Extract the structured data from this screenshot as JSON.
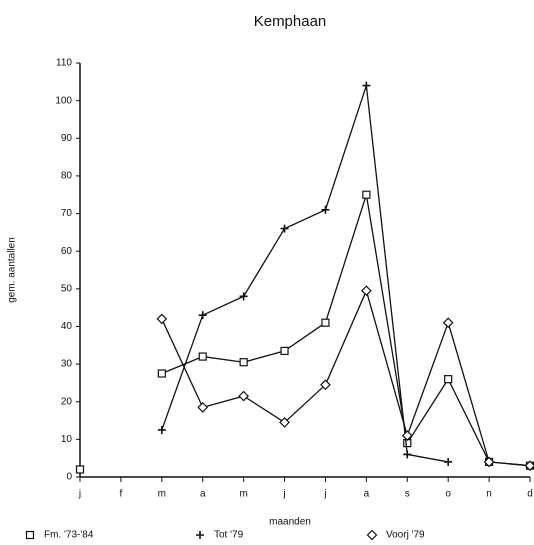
{
  "chart_data": {
    "type": "line",
    "title": "Kemphaan",
    "xlabel": "maanden",
    "ylabel": "gem. aantallen",
    "categories": [
      "j",
      "f",
      "m",
      "a",
      "m",
      "j",
      "j",
      "a",
      "s",
      "o",
      "n",
      "d"
    ],
    "ylim": [
      0,
      110
    ],
    "yticks": [
      0,
      10,
      20,
      30,
      40,
      50,
      60,
      70,
      80,
      90,
      100,
      110
    ],
    "series": [
      {
        "name": "Fm. '73-'84",
        "color": "#111111",
        "marker": "square",
        "values": [
          2,
          null,
          27.5,
          32,
          30.5,
          33.5,
          41,
          75,
          9,
          26,
          4,
          3
        ]
      },
      {
        "name": "Tot '79",
        "color": "#111111",
        "marker": "plus",
        "values": [
          null,
          null,
          12.5,
          43,
          48,
          66,
          71,
          104,
          6,
          4,
          null,
          null
        ]
      },
      {
        "name": "Voorj '79",
        "color": "#111111",
        "marker": "diamond",
        "values": [
          null,
          null,
          42,
          18.5,
          21.5,
          14.5,
          24.5,
          49.5,
          11,
          41,
          4,
          3
        ]
      }
    ]
  }
}
